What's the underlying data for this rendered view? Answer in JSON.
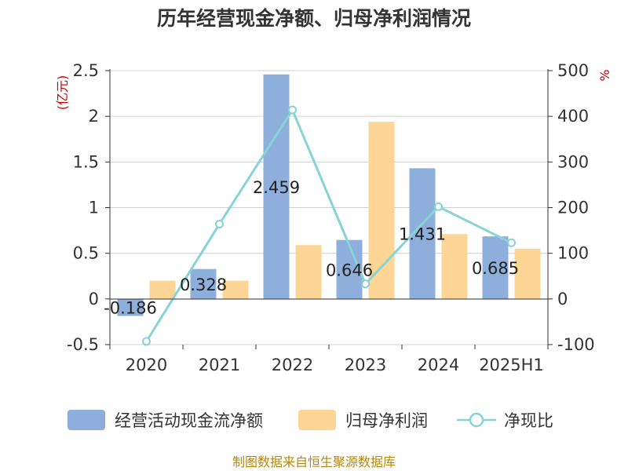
{
  "chart_data": {
    "type": "bar",
    "title": "历年经营现金净额、归母净利润情况",
    "categories": [
      "2020",
      "2021",
      "2022",
      "2023",
      "2024",
      "2025H1"
    ],
    "left_axis": {
      "unit": "(亿元)",
      "ticks": [
        "2.5",
        "2",
        "1.5",
        "1",
        "0.5",
        "0",
        "-0.5"
      ],
      "range": [
        -0.5,
        2.5
      ]
    },
    "right_axis": {
      "unit": "%",
      "ticks": [
        "500",
        "400",
        "300",
        "200",
        "100",
        "0",
        "-100"
      ],
      "range": [
        -100,
        500
      ]
    },
    "series": [
      {
        "name": "经营活动现金流净额",
        "type": "bar",
        "color": "#8eaedb",
        "values": [
          -0.186,
          0.328,
          2.459,
          0.646,
          1.431,
          0.685
        ],
        "labels": [
          "-0.186",
          "0.328",
          "2.459",
          "0.646",
          "1.431",
          "0.685"
        ]
      },
      {
        "name": "归母净利润",
        "type": "bar",
        "color": "#fdd696",
        "values": [
          0.2,
          0.2,
          0.59,
          1.94,
          0.71,
          0.55
        ]
      },
      {
        "name": "净现比",
        "type": "line",
        "axis": "right",
        "color": "#87d3d6",
        "values": [
          -93,
          164,
          414,
          33,
          202,
          123
        ]
      }
    ],
    "grid": true,
    "legend_position": "bottom"
  },
  "footer": {
    "source": "制图数据来自恒生聚源数据库"
  }
}
